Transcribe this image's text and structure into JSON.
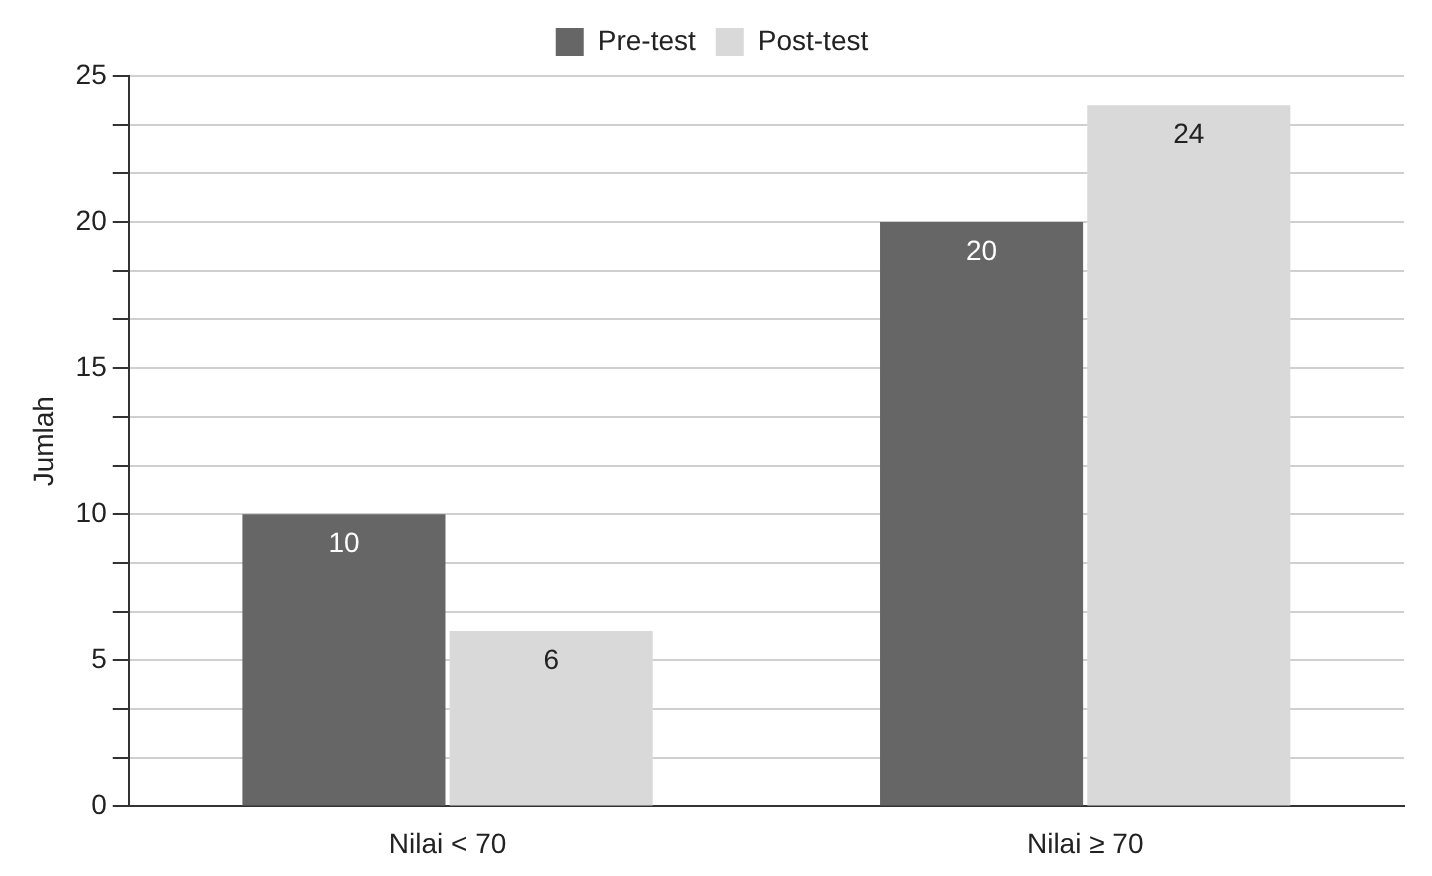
{
  "chart_data": {
    "type": "bar",
    "ylabel": "Jumlah",
    "categories": [
      "Nilai < 70",
      "Nilai ≥ 70"
    ],
    "series": [
      {
        "name": "Pre-test",
        "color": "#666666",
        "values": [
          10,
          20
        ]
      },
      {
        "name": "Post-test",
        "color": "#d9d9d9",
        "values": [
          6,
          24
        ]
      }
    ],
    "ylim": [
      0,
      25
    ],
    "yticks": [
      0,
      {
        "value": 1.667,
        "label": null
      },
      {
        "value": 3.333,
        "label": null
      },
      5,
      {
        "value": 6.667,
        "label": null
      },
      {
        "value": 8.333,
        "label": null
      },
      10,
      {
        "value": 11.667,
        "label": null
      },
      {
        "value": 13.333,
        "label": null
      },
      15,
      {
        "value": 16.667,
        "label": null
      },
      {
        "value": 18.333,
        "label": null
      },
      20,
      {
        "value": 21.667,
        "label": null
      },
      {
        "value": 23.333,
        "label": null
      },
      25
    ],
    "grid": "y",
    "legend": "top",
    "data_labels": true
  }
}
